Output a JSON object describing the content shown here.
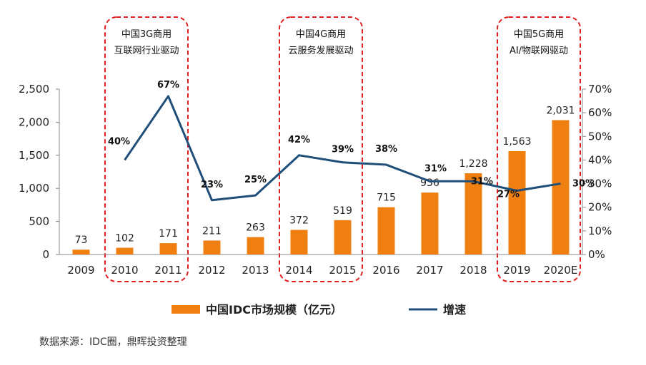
{
  "chart_data": {
    "type": "bar",
    "categories": [
      "2009",
      "2010",
      "2011",
      "2012",
      "2013",
      "2014",
      "2015",
      "2016",
      "2017",
      "2018",
      "2019",
      "2020E"
    ],
    "series": [
      {
        "name": "中国IDC市场规模（亿元）",
        "kind": "bar",
        "axis": "left",
        "color": "#F07F12",
        "values": [
          73,
          102,
          171,
          211,
          263,
          372,
          519,
          715,
          936,
          1228,
          1563,
          2031
        ],
        "labels": [
          "73",
          "102",
          "171",
          "211",
          "263",
          "372",
          "519",
          "715",
          "936",
          "1,228",
          "1,563",
          "2,031"
        ]
      },
      {
        "name": "增速",
        "kind": "line",
        "axis": "right",
        "color": "#1F4E79",
        "values": [
          null,
          40,
          67,
          23,
          25,
          42,
          39,
          38,
          31,
          31,
          27,
          30
        ],
        "labels": [
          "",
          "40%",
          "67%",
          "23%",
          "25%",
          "42%",
          "39%",
          "38%",
          "31%",
          "31%",
          "27%",
          "30%"
        ]
      }
    ],
    "left_axis": {
      "min": 0,
      "max": 2500,
      "ticks": [
        "0",
        "500",
        "1,000",
        "1,500",
        "2,000",
        "2,500"
      ]
    },
    "right_axis": {
      "min": 0,
      "max": 70,
      "ticks": [
        "0%",
        "10%",
        "20%",
        "30%",
        "40%",
        "50%",
        "60%",
        "70%"
      ]
    },
    "grid": false,
    "legend_position": "bottom",
    "annotations": [
      {
        "line1": "中国3G商用",
        "line2": "互联网行业驱动",
        "from": "2010",
        "to": "2011"
      },
      {
        "line1": "中国4G商用",
        "line2": "云服务发展驱动",
        "from": "2014",
        "to": "2015"
      },
      {
        "line1": "中国5G商用",
        "line2": "AI/物联网驱动",
        "from": "2019",
        "to": "2020E"
      }
    ],
    "annotation_color": "#E02020"
  },
  "source_note": "数据来源：IDC圈，鼎晖投资整理"
}
